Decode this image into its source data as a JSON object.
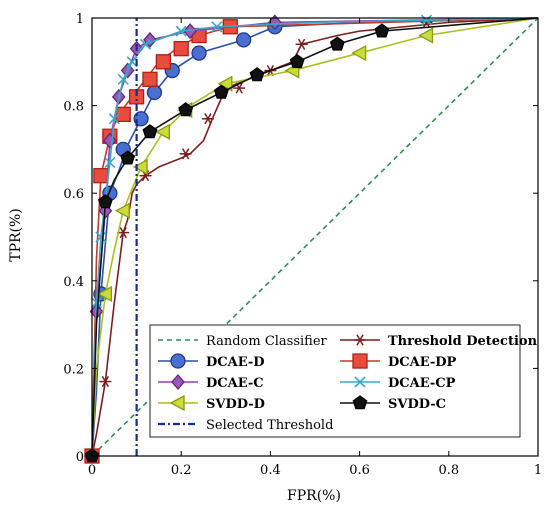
{
  "chart_data": {
    "type": "line",
    "xlabel": "FPR(%)",
    "ylabel": "TPR(%)",
    "xlim": [
      0,
      1
    ],
    "ylim": [
      0,
      1
    ],
    "x_ticks": [
      "0",
      "0.2",
      "0.4",
      "0.6",
      "0.8",
      "1"
    ],
    "y_ticks": [
      "0",
      "0.2",
      "0.4",
      "0.6",
      "0.8",
      "1"
    ],
    "legend_position": "bottom-right",
    "series": [
      {
        "name": "Random Classifier",
        "style": "dashed",
        "color": "#2e8b57",
        "marker": "none",
        "x": [
          0,
          1
        ],
        "y": [
          0,
          1
        ]
      },
      {
        "name": "Threshold Detection",
        "style": "solid",
        "color": "#7a1f1f",
        "marker": "asterisk",
        "x": [
          0,
          0.01,
          0.03,
          0.05,
          0.07,
          0.08,
          0.09,
          0.1,
          0.12,
          0.15,
          0.2,
          0.22,
          0.25,
          0.27,
          0.3,
          0.35,
          0.4,
          0.45,
          0.47,
          0.55,
          0.6,
          0.7,
          0.8,
          1
        ],
        "y": [
          0,
          0.05,
          0.17,
          0.35,
          0.51,
          0.54,
          0.6,
          0.62,
          0.64,
          0.66,
          0.68,
          0.69,
          0.72,
          0.77,
          0.84,
          0.86,
          0.88,
          0.9,
          0.94,
          0.96,
          0.97,
          0.98,
          0.99,
          1
        ],
        "markers_x": [
          0.03,
          0.07,
          0.12,
          0.21,
          0.26,
          0.33,
          0.4,
          0.47,
          0.75
        ],
        "markers_y": [
          0.17,
          0.51,
          0.64,
          0.69,
          0.77,
          0.84,
          0.88,
          0.94,
          0.99
        ]
      },
      {
        "name": "DCAE-D",
        "style": "solid",
        "color": "#2b4ea8",
        "marker": "circle",
        "x": [
          0,
          0.01,
          0.02,
          0.04,
          0.06,
          0.08,
          0.11,
          0.14,
          0.18,
          0.24,
          0.34,
          0.41,
          0.6,
          1
        ],
        "y": [
          0,
          0.15,
          0.37,
          0.6,
          0.65,
          0.71,
          0.77,
          0.83,
          0.88,
          0.92,
          0.95,
          0.98,
          0.99,
          1
        ],
        "markers_x": [
          0,
          0.02,
          0.04,
          0.07,
          0.11,
          0.14,
          0.18,
          0.24,
          0.34,
          0.41
        ],
        "markers_y": [
          0,
          0.37,
          0.6,
          0.7,
          0.77,
          0.83,
          0.88,
          0.92,
          0.95,
          0.98
        ]
      },
      {
        "name": "DCAE-DP",
        "style": "solid",
        "color": "#c0392b",
        "marker": "square",
        "x": [
          0,
          0.01,
          0.02,
          0.04,
          0.06,
          0.09,
          0.12,
          0.15,
          0.19,
          0.24,
          0.31,
          1
        ],
        "y": [
          0,
          0.45,
          0.64,
          0.73,
          0.78,
          0.82,
          0.86,
          0.9,
          0.93,
          0.96,
          0.98,
          1
        ],
        "markers_x": [
          0,
          0.02,
          0.04,
          0.07,
          0.1,
          0.13,
          0.16,
          0.2,
          0.24,
          0.31
        ],
        "markers_y": [
          0,
          0.64,
          0.73,
          0.78,
          0.82,
          0.86,
          0.9,
          0.93,
          0.96,
          0.98
        ]
      },
      {
        "name": "DCAE-C",
        "style": "solid",
        "color": "#8e44ad",
        "marker": "diamond",
        "x": [
          0,
          0.01,
          0.03,
          0.04,
          0.06,
          0.08,
          0.1,
          0.13,
          0.22,
          0.41,
          1
        ],
        "y": [
          0,
          0.33,
          0.56,
          0.72,
          0.82,
          0.88,
          0.93,
          0.95,
          0.97,
          0.99,
          1
        ],
        "markers_x": [
          0.01,
          0.03,
          0.04,
          0.06,
          0.08,
          0.1,
          0.13,
          0.22,
          0.41
        ],
        "markers_y": [
          0.33,
          0.56,
          0.72,
          0.82,
          0.88,
          0.93,
          0.95,
          0.97,
          0.99
        ]
      },
      {
        "name": "DCAE-CP",
        "style": "solid",
        "color": "#3aa6c9",
        "marker": "x",
        "x": [
          0,
          0.01,
          0.02,
          0.04,
          0.05,
          0.07,
          0.09,
          0.12,
          0.2,
          0.28,
          0.5,
          0.75,
          1
        ],
        "y": [
          0,
          0.35,
          0.5,
          0.67,
          0.77,
          0.86,
          0.9,
          0.94,
          0.97,
          0.98,
          0.99,
          0.995,
          1
        ],
        "markers_x": [
          0.01,
          0.02,
          0.04,
          0.05,
          0.07,
          0.09,
          0.12,
          0.2,
          0.28,
          0.75
        ],
        "markers_y": [
          0.35,
          0.5,
          0.67,
          0.77,
          0.86,
          0.9,
          0.94,
          0.97,
          0.98,
          0.995
        ]
      },
      {
        "name": "SVDD-D",
        "style": "solid",
        "color": "#a8c020",
        "marker": "triangle-left",
        "x": [
          0,
          0.01,
          0.03,
          0.05,
          0.07,
          0.11,
          0.16,
          0.22,
          0.3,
          0.45,
          0.6,
          0.75,
          1
        ],
        "y": [
          0,
          0.2,
          0.37,
          0.47,
          0.56,
          0.66,
          0.74,
          0.8,
          0.85,
          0.88,
          0.92,
          0.96,
          1
        ],
        "markers_x": [
          0.03,
          0.07,
          0.11,
          0.16,
          0.21,
          0.3,
          0.45,
          0.6,
          0.75
        ],
        "markers_y": [
          0.37,
          0.56,
          0.66,
          0.74,
          0.79,
          0.85,
          0.88,
          0.92,
          0.96
        ]
      },
      {
        "name": "SVDD-C",
        "style": "solid",
        "color": "#111111",
        "marker": "pentagon",
        "x": [
          0,
          0.01,
          0.03,
          0.05,
          0.08,
          0.13,
          0.21,
          0.29,
          0.37,
          0.46,
          0.55,
          0.65,
          1
        ],
        "y": [
          0,
          0.3,
          0.58,
          0.63,
          0.68,
          0.74,
          0.79,
          0.83,
          0.87,
          0.9,
          0.94,
          0.97,
          1
        ],
        "markers_x": [
          0,
          0.03,
          0.08,
          0.13,
          0.21,
          0.29,
          0.37,
          0.46,
          0.55,
          0.65
        ],
        "markers_y": [
          0,
          0.58,
          0.68,
          0.74,
          0.79,
          0.83,
          0.87,
          0.9,
          0.94,
          0.97
        ]
      },
      {
        "name": "Selected Threshold",
        "style": "dashdot",
        "color": "#1a2a8c",
        "marker": "none",
        "x": [
          0.1,
          0.1
        ],
        "y": [
          0,
          1
        ]
      }
    ],
    "legend_order": [
      "Random Classifier",
      "Threshold Detection",
      "DCAE-D",
      "DCAE-DP",
      "DCAE-C",
      "DCAE-CP",
      "SVDD-D",
      "SVDD-C",
      "Selected Threshold"
    ]
  }
}
